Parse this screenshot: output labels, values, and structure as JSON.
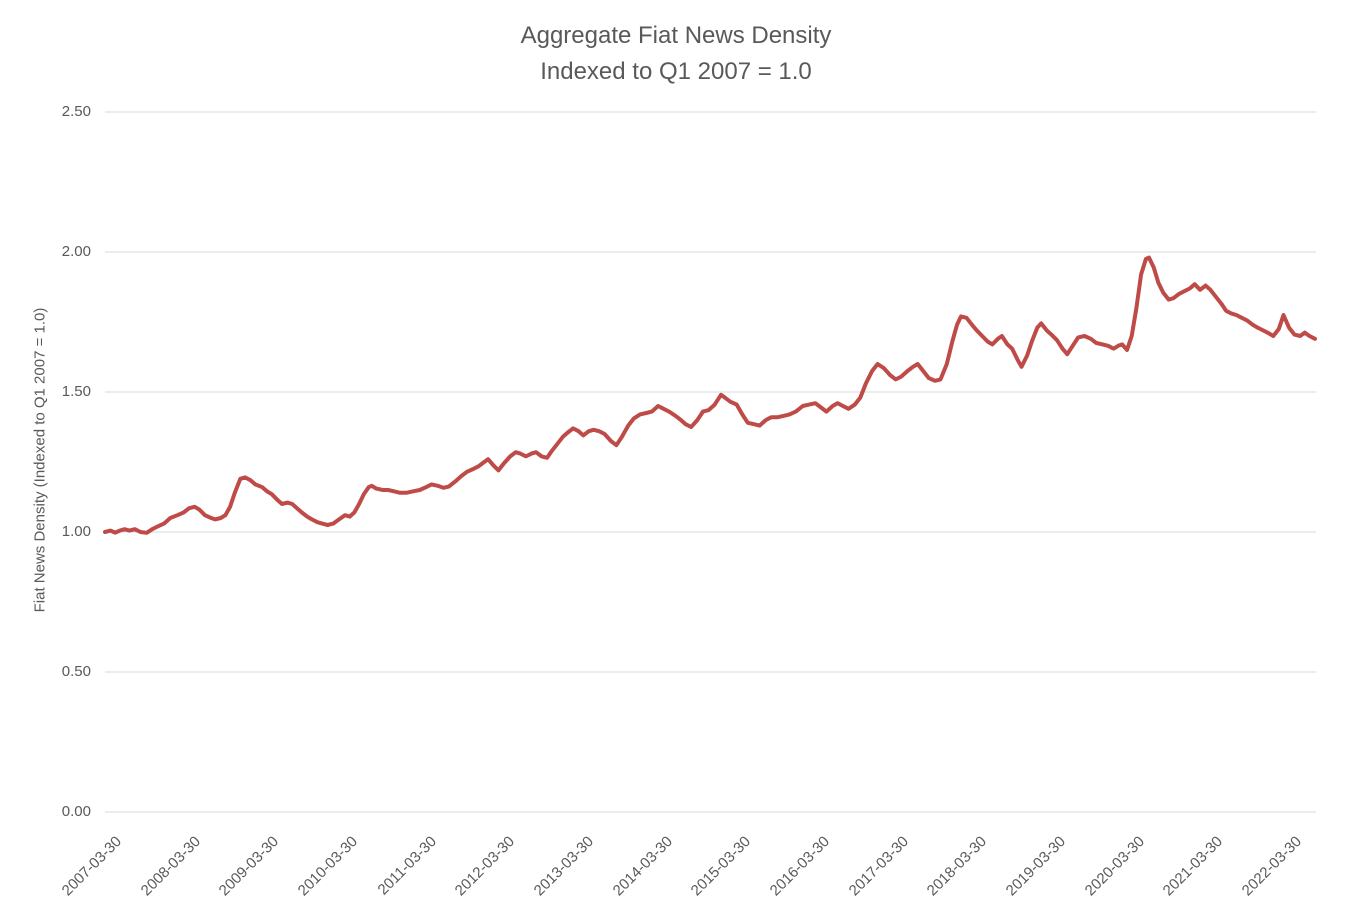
{
  "title": {
    "line1": "Aggregate Fiat News Density",
    "line2": "Indexed to Q1 2007 = 1.0"
  },
  "colors": {
    "line": "#BE4B48",
    "grid": "#D9D9D9",
    "text": "#595959",
    "background": "#FFFFFF"
  },
  "chart_data": {
    "type": "line",
    "title": "Aggregate Fiat News Density",
    "subtitle": "Indexed to Q1 2007 = 1.0",
    "xlabel": "",
    "ylabel": "Fiat News Density (Indexed to Q1 2007 = 1.0)",
    "ylim": [
      0,
      2.5
    ],
    "grid": "horizontal-only",
    "legend": "none",
    "y_ticks": {
      "values": [
        0,
        0.5,
        1.0,
        1.5,
        2.0,
        2.5
      ],
      "labels": [
        "0.00",
        "0.50",
        "1.00",
        "1.50",
        "2.00",
        "2.50"
      ]
    },
    "x_ticks": {
      "labels": [
        "2007-03-30",
        "2008-03-30",
        "2009-03-30",
        "2010-03-30",
        "2011-03-30",
        "2012-03-30",
        "2013-03-30",
        "2014-03-30",
        "2015-03-30",
        "2016-03-30",
        "2017-03-30",
        "2018-03-30",
        "2019-03-30",
        "2020-03-30",
        "2021-03-30",
        "2022-03-30"
      ],
      "interval_years": 1
    },
    "x_range": [
      2007.25,
      2022.63
    ],
    "series": [
      {
        "name": "Aggregate Fiat News Density",
        "color": "#BE4B48",
        "points": [
          [
            2007.25,
            1.0
          ],
          [
            2007.32,
            1.005
          ],
          [
            2007.38,
            0.998
          ],
          [
            2007.44,
            1.005
          ],
          [
            2007.5,
            1.01
          ],
          [
            2007.56,
            1.005
          ],
          [
            2007.63,
            1.01
          ],
          [
            2007.7,
            1.0
          ],
          [
            2007.78,
            0.997
          ],
          [
            2007.85,
            1.01
          ],
          [
            2007.92,
            1.02
          ],
          [
            2008.0,
            1.03
          ],
          [
            2008.08,
            1.05
          ],
          [
            2008.17,
            1.06
          ],
          [
            2008.25,
            1.07
          ],
          [
            2008.32,
            1.085
          ],
          [
            2008.39,
            1.09
          ],
          [
            2008.45,
            1.08
          ],
          [
            2008.52,
            1.06
          ],
          [
            2008.6,
            1.05
          ],
          [
            2008.65,
            1.045
          ],
          [
            2008.72,
            1.05
          ],
          [
            2008.78,
            1.06
          ],
          [
            2008.84,
            1.09
          ],
          [
            2008.9,
            1.14
          ],
          [
            2008.97,
            1.19
          ],
          [
            2009.03,
            1.195
          ],
          [
            2009.1,
            1.185
          ],
          [
            2009.16,
            1.17
          ],
          [
            2009.25,
            1.16
          ],
          [
            2009.31,
            1.145
          ],
          [
            2009.37,
            1.135
          ],
          [
            2009.44,
            1.115
          ],
          [
            2009.5,
            1.1
          ],
          [
            2009.57,
            1.105
          ],
          [
            2009.63,
            1.1
          ],
          [
            2009.69,
            1.085
          ],
          [
            2009.75,
            1.07
          ],
          [
            2009.82,
            1.055
          ],
          [
            2009.88,
            1.045
          ],
          [
            2009.95,
            1.035
          ],
          [
            2010.01,
            1.03
          ],
          [
            2010.08,
            1.025
          ],
          [
            2010.15,
            1.03
          ],
          [
            2010.2,
            1.04
          ],
          [
            2010.25,
            1.05
          ],
          [
            2010.3,
            1.06
          ],
          [
            2010.36,
            1.055
          ],
          [
            2010.42,
            1.07
          ],
          [
            2010.48,
            1.1
          ],
          [
            2010.54,
            1.135
          ],
          [
            2010.6,
            1.16
          ],
          [
            2010.64,
            1.165
          ],
          [
            2010.7,
            1.155
          ],
          [
            2010.78,
            1.15
          ],
          [
            2010.85,
            1.15
          ],
          [
            2010.93,
            1.145
          ],
          [
            2011.0,
            1.14
          ],
          [
            2011.08,
            1.14
          ],
          [
            2011.16,
            1.145
          ],
          [
            2011.25,
            1.15
          ],
          [
            2011.33,
            1.16
          ],
          [
            2011.4,
            1.17
          ],
          [
            2011.48,
            1.165
          ],
          [
            2011.55,
            1.158
          ],
          [
            2011.62,
            1.162
          ],
          [
            2011.7,
            1.18
          ],
          [
            2011.78,
            1.2
          ],
          [
            2011.85,
            1.215
          ],
          [
            2011.93,
            1.225
          ],
          [
            2012.0,
            1.235
          ],
          [
            2012.07,
            1.25
          ],
          [
            2012.12,
            1.26
          ],
          [
            2012.18,
            1.24
          ],
          [
            2012.25,
            1.22
          ],
          [
            2012.32,
            1.245
          ],
          [
            2012.4,
            1.27
          ],
          [
            2012.47,
            1.285
          ],
          [
            2012.53,
            1.28
          ],
          [
            2012.6,
            1.27
          ],
          [
            2012.67,
            1.28
          ],
          [
            2012.73,
            1.285
          ],
          [
            2012.8,
            1.27
          ],
          [
            2012.87,
            1.265
          ],
          [
            2012.93,
            1.29
          ],
          [
            2013.0,
            1.315
          ],
          [
            2013.07,
            1.34
          ],
          [
            2013.13,
            1.355
          ],
          [
            2013.2,
            1.37
          ],
          [
            2013.27,
            1.36
          ],
          [
            2013.33,
            1.345
          ],
          [
            2013.4,
            1.36
          ],
          [
            2013.46,
            1.365
          ],
          [
            2013.53,
            1.36
          ],
          [
            2013.6,
            1.35
          ],
          [
            2013.68,
            1.325
          ],
          [
            2013.75,
            1.31
          ],
          [
            2013.82,
            1.34
          ],
          [
            2013.9,
            1.38
          ],
          [
            2013.97,
            1.405
          ],
          [
            2014.05,
            1.42
          ],
          [
            2014.13,
            1.425
          ],
          [
            2014.2,
            1.43
          ],
          [
            2014.28,
            1.45
          ],
          [
            2014.35,
            1.44
          ],
          [
            2014.42,
            1.43
          ],
          [
            2014.5,
            1.415
          ],
          [
            2014.57,
            1.4
          ],
          [
            2014.63,
            1.385
          ],
          [
            2014.7,
            1.375
          ],
          [
            2014.78,
            1.4
          ],
          [
            2014.85,
            1.43
          ],
          [
            2014.92,
            1.435
          ],
          [
            2015.0,
            1.455
          ],
          [
            2015.08,
            1.49
          ],
          [
            2015.13,
            1.48
          ],
          [
            2015.2,
            1.465
          ],
          [
            2015.28,
            1.455
          ],
          [
            2015.35,
            1.42
          ],
          [
            2015.42,
            1.39
          ],
          [
            2015.5,
            1.385
          ],
          [
            2015.57,
            1.38
          ],
          [
            2015.65,
            1.4
          ],
          [
            2015.72,
            1.41
          ],
          [
            2015.8,
            1.41
          ],
          [
            2015.88,
            1.415
          ],
          [
            2015.95,
            1.42
          ],
          [
            2016.03,
            1.43
          ],
          [
            2016.12,
            1.45
          ],
          [
            2016.2,
            1.455
          ],
          [
            2016.28,
            1.46
          ],
          [
            2016.35,
            1.445
          ],
          [
            2016.42,
            1.43
          ],
          [
            2016.5,
            1.45
          ],
          [
            2016.56,
            1.46
          ],
          [
            2016.63,
            1.45
          ],
          [
            2016.7,
            1.44
          ],
          [
            2016.78,
            1.455
          ],
          [
            2016.85,
            1.48
          ],
          [
            2016.92,
            1.53
          ],
          [
            2017.0,
            1.575
          ],
          [
            2017.07,
            1.6
          ],
          [
            2017.15,
            1.585
          ],
          [
            2017.23,
            1.56
          ],
          [
            2017.3,
            1.545
          ],
          [
            2017.37,
            1.555
          ],
          [
            2017.45,
            1.575
          ],
          [
            2017.52,
            1.59
          ],
          [
            2017.58,
            1.6
          ],
          [
            2017.65,
            1.575
          ],
          [
            2017.72,
            1.55
          ],
          [
            2017.8,
            1.54
          ],
          [
            2017.87,
            1.545
          ],
          [
            2017.95,
            1.6
          ],
          [
            2018.02,
            1.68
          ],
          [
            2018.08,
            1.74
          ],
          [
            2018.13,
            1.77
          ],
          [
            2018.2,
            1.765
          ],
          [
            2018.27,
            1.74
          ],
          [
            2018.33,
            1.72
          ],
          [
            2018.4,
            1.7
          ],
          [
            2018.47,
            1.68
          ],
          [
            2018.53,
            1.67
          ],
          [
            2018.6,
            1.69
          ],
          [
            2018.65,
            1.7
          ],
          [
            2018.72,
            1.67
          ],
          [
            2018.78,
            1.655
          ],
          [
            2018.85,
            1.615
          ],
          [
            2018.9,
            1.59
          ],
          [
            2018.97,
            1.63
          ],
          [
            2019.03,
            1.68
          ],
          [
            2019.1,
            1.73
          ],
          [
            2019.15,
            1.745
          ],
          [
            2019.22,
            1.72
          ],
          [
            2019.28,
            1.705
          ],
          [
            2019.35,
            1.685
          ],
          [
            2019.42,
            1.655
          ],
          [
            2019.48,
            1.635
          ],
          [
            2019.55,
            1.665
          ],
          [
            2019.62,
            1.695
          ],
          [
            2019.7,
            1.7
          ],
          [
            2019.78,
            1.69
          ],
          [
            2019.85,
            1.675
          ],
          [
            2019.93,
            1.67
          ],
          [
            2020.0,
            1.665
          ],
          [
            2020.07,
            1.655
          ],
          [
            2020.13,
            1.665
          ],
          [
            2020.18,
            1.67
          ],
          [
            2020.24,
            1.65
          ],
          [
            2020.3,
            1.7
          ],
          [
            2020.36,
            1.8
          ],
          [
            2020.42,
            1.92
          ],
          [
            2020.48,
            1.975
          ],
          [
            2020.52,
            1.98
          ],
          [
            2020.58,
            1.945
          ],
          [
            2020.64,
            1.89
          ],
          [
            2020.7,
            1.855
          ],
          [
            2020.77,
            1.83
          ],
          [
            2020.83,
            1.835
          ],
          [
            2020.9,
            1.85
          ],
          [
            2020.97,
            1.86
          ],
          [
            2021.04,
            1.87
          ],
          [
            2021.1,
            1.885
          ],
          [
            2021.17,
            1.865
          ],
          [
            2021.24,
            1.88
          ],
          [
            2021.3,
            1.865
          ],
          [
            2021.37,
            1.84
          ],
          [
            2021.44,
            1.815
          ],
          [
            2021.5,
            1.79
          ],
          [
            2021.57,
            1.78
          ],
          [
            2021.63,
            1.775
          ],
          [
            2021.7,
            1.765
          ],
          [
            2021.77,
            1.755
          ],
          [
            2021.84,
            1.74
          ],
          [
            2021.9,
            1.73
          ],
          [
            2021.97,
            1.72
          ],
          [
            2022.04,
            1.71
          ],
          [
            2022.1,
            1.7
          ],
          [
            2022.17,
            1.725
          ],
          [
            2022.23,
            1.775
          ],
          [
            2022.3,
            1.73
          ],
          [
            2022.37,
            1.705
          ],
          [
            2022.44,
            1.7
          ],
          [
            2022.5,
            1.712
          ],
          [
            2022.56,
            1.7
          ],
          [
            2022.63,
            1.69
          ]
        ]
      }
    ]
  }
}
